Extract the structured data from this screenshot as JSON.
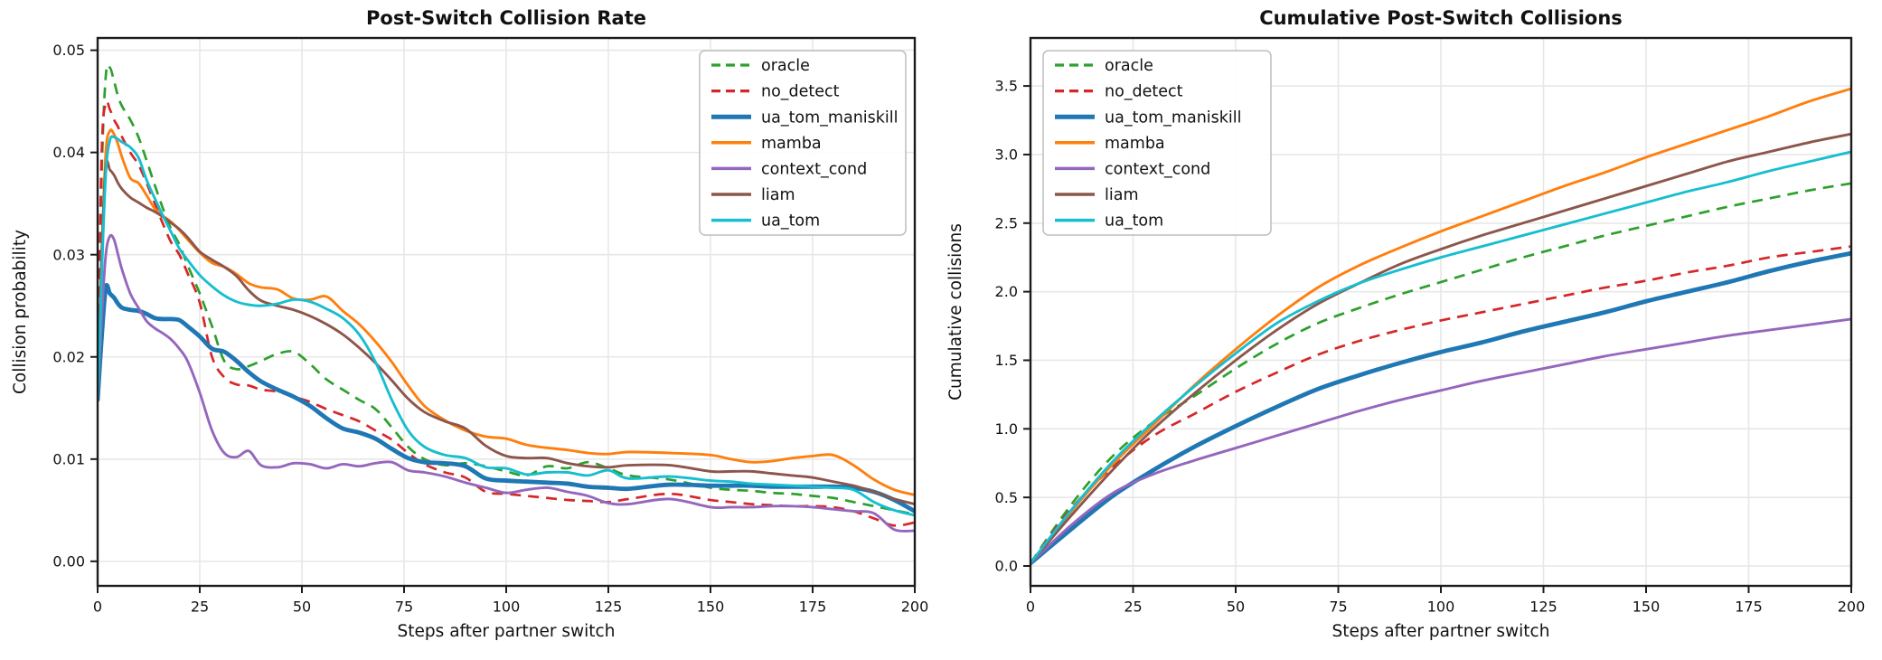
{
  "figure": {
    "background": "#ffffff",
    "grid_color": "#e7e7e7",
    "spine_color": "#1c1c1c",
    "text_color": "#111111",
    "panels": 2
  },
  "chart_data": [
    {
      "type": "line",
      "title": "Post-Switch Collision Rate",
      "xlabel": "Steps after partner switch",
      "ylabel": "Collision probability",
      "grid": true,
      "legend_position": "upper-right",
      "xlim": [
        0,
        200
      ],
      "ylim": [
        -0.0024,
        0.0512
      ],
      "xticks": [
        0,
        25,
        50,
        75,
        100,
        125,
        150,
        175,
        200
      ],
      "xtick_labels": [
        "0",
        "25",
        "50",
        "75",
        "100",
        "125",
        "150",
        "175",
        "200"
      ],
      "yticks": [
        0.0,
        0.01,
        0.02,
        0.03,
        0.04,
        0.05
      ],
      "ytick_labels": [
        "0.00",
        "0.01",
        "0.02",
        "0.03",
        "0.04",
        "0.05"
      ],
      "x": [
        0,
        1,
        2,
        3,
        4,
        5,
        6,
        8,
        10,
        12,
        14,
        16,
        18,
        20,
        22,
        25,
        28,
        31,
        34,
        37,
        40,
        44,
        48,
        52,
        56,
        60,
        64,
        68,
        72,
        76,
        80,
        85,
        90,
        95,
        100,
        105,
        110,
        115,
        120,
        125,
        130,
        140,
        150,
        155,
        160,
        165,
        170,
        175,
        180,
        185,
        190,
        195,
        200
      ],
      "series": [
        {
          "name": "oracle",
          "color": "#2ca02c",
          "dash": true,
          "width": 2.7,
          "values": [
            0.017,
            0.038,
            0.0475,
            0.0483,
            0.047,
            0.0455,
            0.0445,
            0.0432,
            0.0415,
            0.0392,
            0.0368,
            0.0345,
            0.0325,
            0.031,
            0.029,
            0.0262,
            0.023,
            0.0196,
            0.0188,
            0.0191,
            0.0196,
            0.0203,
            0.0205,
            0.0193,
            0.0178,
            0.0168,
            0.0158,
            0.0149,
            0.0131,
            0.0112,
            0.01,
            0.0094,
            0.0096,
            0.0093,
            0.0088,
            0.0084,
            0.0093,
            0.0091,
            0.0097,
            0.0091,
            0.0084,
            0.008,
            0.0072,
            0.007,
            0.0069,
            0.0067,
            0.0066,
            0.0064,
            0.0062,
            0.0058,
            0.0054,
            0.005,
            0.0046
          ]
        },
        {
          "name": "no_detect",
          "color": "#d62728",
          "dash": true,
          "width": 2.7,
          "values": [
            0.017,
            0.04,
            0.0448,
            0.0442,
            0.0432,
            0.0425,
            0.0415,
            0.04,
            0.0388,
            0.037,
            0.035,
            0.033,
            0.0312,
            0.03,
            0.0282,
            0.0253,
            0.02,
            0.018,
            0.0173,
            0.0172,
            0.0168,
            0.0166,
            0.0161,
            0.0156,
            0.0149,
            0.0143,
            0.0137,
            0.0128,
            0.0119,
            0.0106,
            0.0095,
            0.0087,
            0.0082,
            0.0068,
            0.0066,
            0.0064,
            0.0062,
            0.006,
            0.0059,
            0.0058,
            0.0061,
            0.0066,
            0.006,
            0.0058,
            0.0056,
            0.0055,
            0.0054,
            0.0054,
            0.0053,
            0.0049,
            0.0042,
            0.0035,
            0.0038
          ]
        },
        {
          "name": "ua_tom_maniskill",
          "color": "#1f77b4",
          "dash": false,
          "width": 4.8,
          "values": [
            0.0158,
            0.022,
            0.0268,
            0.0262,
            0.0258,
            0.0252,
            0.0248,
            0.0246,
            0.0245,
            0.0242,
            0.0238,
            0.0237,
            0.0237,
            0.0236,
            0.023,
            0.022,
            0.0208,
            0.0205,
            0.0196,
            0.0185,
            0.0176,
            0.0168,
            0.0161,
            0.0152,
            0.014,
            0.013,
            0.0126,
            0.012,
            0.011,
            0.0101,
            0.0097,
            0.0096,
            0.0093,
            0.0081,
            0.0079,
            0.0078,
            0.0077,
            0.0076,
            0.0073,
            0.0072,
            0.0071,
            0.0075,
            0.0074,
            0.0074,
            0.0074,
            0.0073,
            0.0073,
            0.0073,
            0.0073,
            0.0072,
            0.0068,
            0.006,
            0.0049
          ]
        },
        {
          "name": "mamba",
          "color": "#ff7f0e",
          "dash": false,
          "width": 2.9,
          "values": [
            0.016,
            0.03,
            0.04,
            0.0421,
            0.0418,
            0.0408,
            0.0395,
            0.0375,
            0.037,
            0.0358,
            0.0345,
            0.0338,
            0.0332,
            0.0324,
            0.0315,
            0.0302,
            0.0292,
            0.0288,
            0.0281,
            0.0272,
            0.0268,
            0.0266,
            0.0257,
            0.0256,
            0.0259,
            0.0245,
            0.0232,
            0.0215,
            0.0195,
            0.0172,
            0.0152,
            0.0138,
            0.0128,
            0.0122,
            0.012,
            0.0114,
            0.0111,
            0.0109,
            0.0106,
            0.0105,
            0.0107,
            0.0106,
            0.0104,
            0.01,
            0.0097,
            0.0098,
            0.0101,
            0.0103,
            0.0104,
            0.0094,
            0.008,
            0.007,
            0.0065
          ]
        },
        {
          "name": "context_cond",
          "color": "#9467bd",
          "dash": false,
          "width": 2.9,
          "values": [
            0.016,
            0.024,
            0.03,
            0.0318,
            0.0315,
            0.03,
            0.0285,
            0.0262,
            0.0248,
            0.0235,
            0.0228,
            0.0223,
            0.0217,
            0.0208,
            0.0196,
            0.0165,
            0.0128,
            0.0106,
            0.0102,
            0.0108,
            0.0094,
            0.0092,
            0.0096,
            0.0095,
            0.0091,
            0.0095,
            0.0093,
            0.0096,
            0.0097,
            0.0089,
            0.0087,
            0.0083,
            0.0077,
            0.0072,
            0.0067,
            0.007,
            0.0072,
            0.0068,
            0.0064,
            0.0057,
            0.0056,
            0.0061,
            0.0053,
            0.0053,
            0.0053,
            0.0054,
            0.0054,
            0.0053,
            0.0051,
            0.0049,
            0.0047,
            0.0031,
            0.003
          ]
        },
        {
          "name": "liam",
          "color": "#8c564b",
          "dash": false,
          "width": 2.9,
          "values": [
            0.016,
            0.03,
            0.0386,
            0.0383,
            0.0378,
            0.037,
            0.0364,
            0.0356,
            0.0351,
            0.0346,
            0.0342,
            0.0337,
            0.0331,
            0.0325,
            0.0317,
            0.0303,
            0.0295,
            0.0288,
            0.0279,
            0.0265,
            0.0255,
            0.025,
            0.0246,
            0.024,
            0.0232,
            0.0222,
            0.0209,
            0.0194,
            0.0177,
            0.0159,
            0.0146,
            0.0137,
            0.013,
            0.0113,
            0.0103,
            0.0101,
            0.0101,
            0.0096,
            0.0093,
            0.0092,
            0.0094,
            0.0094,
            0.0088,
            0.0088,
            0.0088,
            0.0086,
            0.0084,
            0.0082,
            0.0078,
            0.0074,
            0.0068,
            0.0061,
            0.0056
          ]
        },
        {
          "name": "ua_tom",
          "color": "#17becf",
          "dash": false,
          "width": 2.9,
          "values": [
            0.016,
            0.028,
            0.038,
            0.0412,
            0.0415,
            0.0413,
            0.041,
            0.0405,
            0.0395,
            0.0373,
            0.0355,
            0.0338,
            0.0322,
            0.0306,
            0.0295,
            0.028,
            0.0269,
            0.026,
            0.0254,
            0.0251,
            0.025,
            0.0252,
            0.0256,
            0.0254,
            0.0247,
            0.0238,
            0.0222,
            0.0195,
            0.0158,
            0.0128,
            0.0112,
            0.0104,
            0.0101,
            0.0092,
            0.0091,
            0.0085,
            0.0087,
            0.0087,
            0.0084,
            0.0089,
            0.0081,
            0.0083,
            0.0079,
            0.0078,
            0.0076,
            0.0075,
            0.0074,
            0.0073,
            0.0072,
            0.007,
            0.0058,
            0.005,
            0.0045
          ]
        }
      ]
    },
    {
      "type": "line",
      "title": "Cumulative Post-Switch Collisions",
      "xlabel": "Steps after partner switch",
      "ylabel": "Cumulative collisions",
      "grid": true,
      "legend_position": "upper-left",
      "xlim": [
        0,
        200
      ],
      "ylim": [
        -0.145,
        3.85
      ],
      "xticks": [
        0,
        25,
        50,
        75,
        100,
        125,
        150,
        175,
        200
      ],
      "xtick_labels": [
        "0",
        "25",
        "50",
        "75",
        "100",
        "125",
        "150",
        "175",
        "200"
      ],
      "yticks": [
        0.0,
        0.5,
        1.0,
        1.5,
        2.0,
        2.5,
        3.0,
        3.5
      ],
      "ytick_labels": [
        "0.0",
        "0.5",
        "1.0",
        "1.5",
        "2.0",
        "2.5",
        "3.0",
        "3.5"
      ],
      "x": [
        0,
        10,
        20,
        30,
        40,
        50,
        60,
        70,
        80,
        90,
        100,
        110,
        120,
        130,
        140,
        150,
        160,
        170,
        180,
        190,
        200
      ],
      "series": [
        {
          "name": "oracle",
          "color": "#2ca02c",
          "dash": true,
          "width": 2.7,
          "values": [
            0.02,
            0.45,
            0.8,
            1.05,
            1.24,
            1.44,
            1.62,
            1.77,
            1.88,
            1.98,
            2.07,
            2.16,
            2.25,
            2.33,
            2.41,
            2.48,
            2.55,
            2.62,
            2.68,
            2.74,
            2.79
          ]
        },
        {
          "name": "no_detect",
          "color": "#d62728",
          "dash": true,
          "width": 2.7,
          "values": [
            0.02,
            0.42,
            0.72,
            0.95,
            1.11,
            1.27,
            1.41,
            1.54,
            1.64,
            1.72,
            1.79,
            1.85,
            1.91,
            1.97,
            2.03,
            2.08,
            2.14,
            2.19,
            2.25,
            2.29,
            2.33
          ]
        },
        {
          "name": "ua_tom_maniskill",
          "color": "#1f77b4",
          "dash": false,
          "width": 4.8,
          "values": [
            0.02,
            0.27,
            0.51,
            0.7,
            0.87,
            1.02,
            1.16,
            1.29,
            1.39,
            1.48,
            1.56,
            1.63,
            1.71,
            1.78,
            1.85,
            1.93,
            2.0,
            2.07,
            2.15,
            2.22,
            2.28
          ]
        },
        {
          "name": "mamba",
          "color": "#ff7f0e",
          "dash": false,
          "width": 2.9,
          "values": [
            0.02,
            0.4,
            0.74,
            1.03,
            1.32,
            1.58,
            1.82,
            2.03,
            2.19,
            2.32,
            2.44,
            2.55,
            2.66,
            2.77,
            2.87,
            2.98,
            3.08,
            3.18,
            3.28,
            3.39,
            3.48
          ]
        },
        {
          "name": "context_cond",
          "color": "#9467bd",
          "dash": false,
          "width": 2.9,
          "values": [
            0.02,
            0.3,
            0.53,
            0.67,
            0.77,
            0.86,
            0.95,
            1.04,
            1.13,
            1.21,
            1.28,
            1.35,
            1.41,
            1.47,
            1.53,
            1.58,
            1.63,
            1.68,
            1.72,
            1.76,
            1.8
          ]
        },
        {
          "name": "liam",
          "color": "#8c564b",
          "dash": false,
          "width": 2.9,
          "values": [
            0.02,
            0.37,
            0.7,
            1.0,
            1.26,
            1.5,
            1.72,
            1.91,
            2.06,
            2.2,
            2.31,
            2.41,
            2.5,
            2.59,
            2.68,
            2.77,
            2.86,
            2.95,
            3.02,
            3.09,
            3.15
          ]
        },
        {
          "name": "ua_tom",
          "color": "#17becf",
          "dash": false,
          "width": 2.9,
          "values": [
            0.02,
            0.41,
            0.76,
            1.05,
            1.31,
            1.55,
            1.77,
            1.93,
            2.06,
            2.16,
            2.25,
            2.33,
            2.41,
            2.49,
            2.57,
            2.65,
            2.73,
            2.8,
            2.88,
            2.95,
            3.02
          ]
        }
      ]
    }
  ],
  "legend_labels": [
    "oracle",
    "no_detect",
    "ua_tom_maniskill",
    "mamba",
    "context_cond",
    "liam",
    "ua_tom"
  ]
}
